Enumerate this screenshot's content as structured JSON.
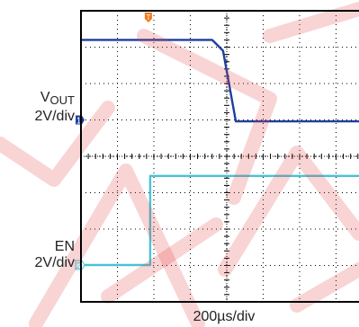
{
  "chart_data": {
    "type": "line",
    "xlabel": "200µs/div",
    "time_per_div_us": 200,
    "divisions": 10,
    "grid": true,
    "x_start_us": -800,
    "series": [
      {
        "name": "VOUT",
        "label_main": "V",
        "label_sub": "OUT",
        "scale": "2V/div",
        "color": "#1f3f9f",
        "marker": "1",
        "x_us": [
          -800,
          -80,
          -20,
          50,
          1200
        ],
        "y_div": [
          2.2,
          2.2,
          1.9,
          -0.04,
          -0.04
        ]
      },
      {
        "name": "EN",
        "scale": "2V/div",
        "color": "#47c4d4",
        "marker": "2",
        "x_us": [
          -800,
          -420,
          -420,
          1200
        ],
        "y_div": [
          0,
          0,
          2.45,
          2.45
        ]
      }
    ],
    "trigger_marker": "T",
    "trigger_x_us": -430
  }
}
